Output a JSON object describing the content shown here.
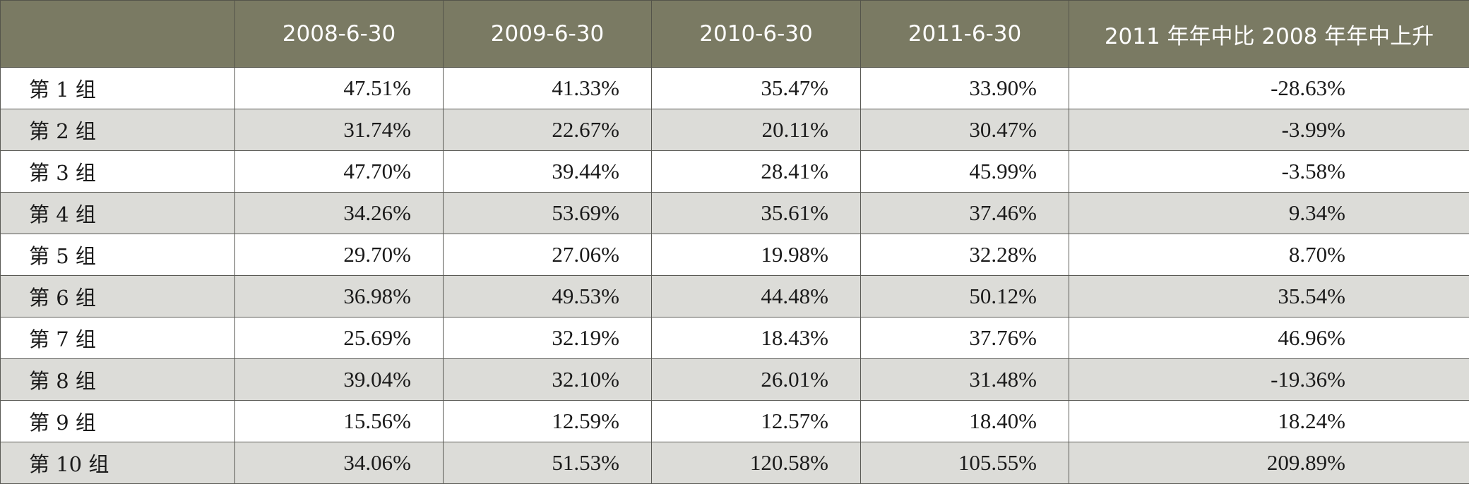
{
  "table": {
    "headers": [
      "",
      "2008-6-30",
      "2009-6-30",
      "2010-6-30",
      "2011-6-30",
      "2011 年年中比 2008 年年中上升"
    ],
    "rows": [
      {
        "label": "第 1 组",
        "values": [
          "47.51%",
          "41.33%",
          "35.47%",
          "33.90%",
          "-28.63%"
        ]
      },
      {
        "label": "第 2 组",
        "values": [
          "31.74%",
          "22.67%",
          "20.11%",
          "30.47%",
          "-3.99%"
        ]
      },
      {
        "label": "第 3 组",
        "values": [
          "47.70%",
          "39.44%",
          "28.41%",
          "45.99%",
          "-3.58%"
        ]
      },
      {
        "label": "第 4 组",
        "values": [
          "34.26%",
          "53.69%",
          "35.61%",
          "37.46%",
          "9.34%"
        ]
      },
      {
        "label": "第 5 组",
        "values": [
          "29.70%",
          "27.06%",
          "19.98%",
          "32.28%",
          "8.70%"
        ]
      },
      {
        "label": "第 6 组",
        "values": [
          "36.98%",
          "49.53%",
          "44.48%",
          "50.12%",
          "35.54%"
        ]
      },
      {
        "label": "第 7 组",
        "values": [
          "25.69%",
          "32.19%",
          "18.43%",
          "37.76%",
          "46.96%"
        ]
      },
      {
        "label": "第 8 组",
        "values": [
          "39.04%",
          "32.10%",
          "26.01%",
          "31.48%",
          "-19.36%"
        ]
      },
      {
        "label": "第 9 组",
        "values": [
          "15.56%",
          "12.59%",
          "12.57%",
          "18.40%",
          "18.24%"
        ]
      },
      {
        "label": "第 10 组",
        "values": [
          "34.06%",
          "51.53%",
          "120.58%",
          "105.55%",
          "209.89%"
        ]
      }
    ]
  },
  "colors": {
    "header_bg": "#7a7a63",
    "header_text": "#ffffff",
    "stripe_bg": "#dcdcd8"
  }
}
